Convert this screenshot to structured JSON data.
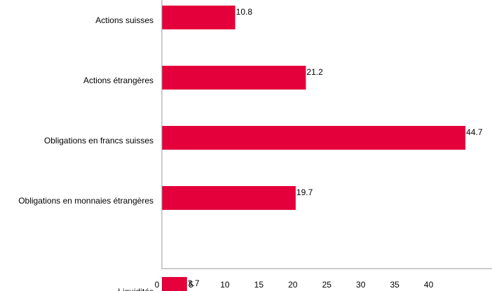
{
  "chart_data": {
    "type": "bar",
    "orientation": "horizontal",
    "title": "",
    "xlabel": "",
    "ylabel": "",
    "categories": [
      "Actions suisses",
      "Actions étrangères",
      "Obligations en francs suisses",
      "Obligations en monnaies étrangères",
      "Liquidités"
    ],
    "values": [
      10.8,
      21.2,
      44.7,
      19.7,
      3.7
    ],
    "data_labels": [
      "10.8",
      "21.2",
      "44.7",
      "19.7",
      "3.7"
    ],
    "xlim": [
      0,
      48.5
    ],
    "x_ticks": [
      0,
      5,
      10,
      15,
      20,
      25,
      30,
      35,
      40
    ],
    "x_tick_labels": [
      "0",
      "5",
      "10",
      "15",
      "20",
      "25",
      "30",
      "35",
      "40"
    ],
    "bar_color": "#e4003a",
    "axis_color": "#999999",
    "grid": false,
    "legend": "none"
  }
}
